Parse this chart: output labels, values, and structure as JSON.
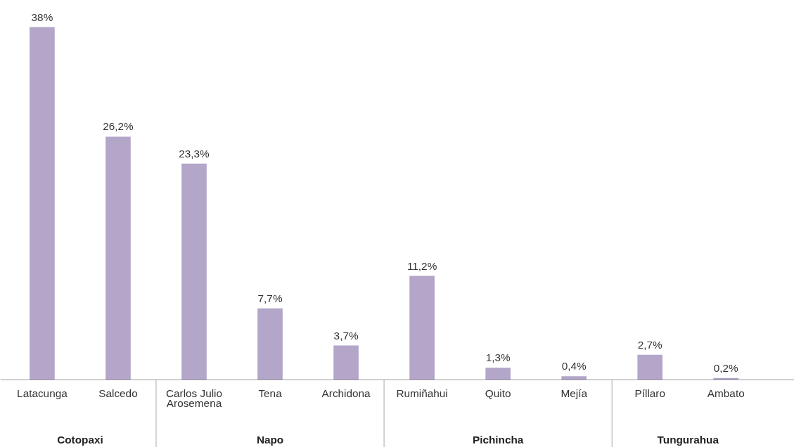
{
  "chart_data": {
    "type": "bar",
    "categories": [
      "Latacunga",
      "Salcedo",
      "Carlos Julio Arosemena",
      "Tena",
      "Archidona",
      "Rumiñahui",
      "Quito",
      "Mejía",
      "Píllaro",
      "Ambato"
    ],
    "values": [
      38,
      26.2,
      23.3,
      7.7,
      3.7,
      11.2,
      1.3,
      0.4,
      2.7,
      0.2
    ],
    "value_labels": [
      "38%",
      "26,2%",
      "23,3%",
      "7,7%",
      "3,7%",
      "11,2%",
      "1,3%",
      "0,4%",
      "2,7%",
      "0,2%"
    ],
    "color": "#b3a6c9",
    "annotations": [
      "Cotopaxi",
      "Napo",
      "Pichincha",
      "Tungurahua"
    ],
    "grid": false
  }
}
